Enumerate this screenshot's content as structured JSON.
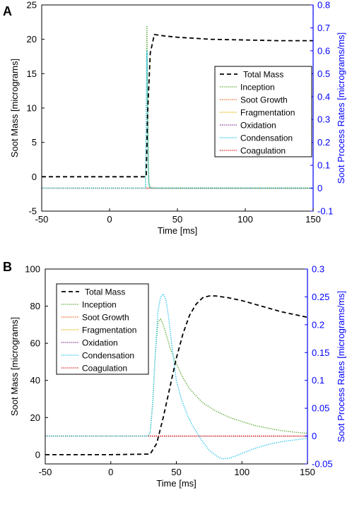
{
  "figure": {
    "panels": [
      {
        "label": "A"
      },
      {
        "label": "B"
      }
    ]
  },
  "colors": {
    "total_mass": "#000000",
    "inception": "#5aa832",
    "soot_growth": "#e8631a",
    "fragmentation": "#e6b400",
    "oxidation": "#7b2d8e",
    "condensation": "#25c2e8",
    "coagulation": "#d8141c",
    "right_axis": "#0000ff"
  },
  "chart_data": [
    {
      "panel": "A",
      "type": "line",
      "xlabel": "Time [ms]",
      "ylabel": "Soot Mass [micrograms]",
      "y2label": "Soot Process Rates [micrograms/ms]",
      "xlim": [
        -50,
        150
      ],
      "ylim": [
        -5,
        25
      ],
      "y2lim": [
        -0.1,
        0.8
      ],
      "xticks": [
        -50,
        0,
        50,
        100,
        150
      ],
      "yticks": [
        -5,
        0,
        5,
        10,
        15,
        20,
        25
      ],
      "y2ticks": [
        -0.1,
        0,
        0.1,
        0.2,
        0.3,
        0.4,
        0.5,
        0.6,
        0.7,
        0.8
      ],
      "grid": false,
      "legend_position": "center-right",
      "series": [
        {
          "name": "Total Mass",
          "axis": "left",
          "style": "dashed",
          "color_key": "total_mass",
          "x": [
            -50,
            27,
            28,
            30,
            33,
            40,
            50,
            75,
            100,
            125,
            150
          ],
          "y": [
            0,
            0,
            9,
            18,
            20.7,
            20.5,
            20.3,
            20.0,
            19.9,
            19.8,
            19.8
          ]
        },
        {
          "name": "Inception",
          "axis": "right",
          "style": "dotted",
          "color_key": "inception",
          "x": [
            -50,
            26.5,
            27,
            27.5,
            28,
            28.5,
            29,
            30,
            40,
            150
          ],
          "y": [
            0,
            0,
            0.3,
            0.71,
            0.4,
            0.12,
            0.02,
            0.002,
            0,
            0
          ]
        },
        {
          "name": "Soot Growth",
          "axis": "right",
          "style": "dotted",
          "color_key": "soot_growth",
          "x": [
            -50,
            150
          ],
          "y": [
            0,
            0
          ]
        },
        {
          "name": "Fragmentation",
          "axis": "right",
          "style": "dotted",
          "color_key": "fragmentation",
          "x": [
            -50,
            150
          ],
          "y": [
            0,
            0
          ]
        },
        {
          "name": "Oxidation",
          "axis": "right",
          "style": "dotted",
          "color_key": "oxidation",
          "x": [
            -50,
            150
          ],
          "y": [
            0,
            0
          ]
        },
        {
          "name": "Condensation",
          "axis": "right",
          "style": "dotted",
          "color_key": "condensation",
          "x": [
            -50,
            26.5,
            27,
            27.5,
            28,
            28.5,
            29,
            30,
            40,
            150
          ],
          "y": [
            0,
            0,
            0.28,
            0.6,
            0.38,
            0.1,
            0.015,
            0.001,
            0,
            0
          ]
        },
        {
          "name": "Coagulation",
          "axis": "right",
          "style": "dotted",
          "color_key": "coagulation",
          "x": [
            -50,
            150
          ],
          "y": [
            0,
            0
          ]
        }
      ]
    },
    {
      "panel": "B",
      "type": "line",
      "xlabel": "Time [ms]",
      "ylabel": "Soot Mass [micrograms]",
      "y2label": "Soot Process Rates [micrograms/ms]",
      "xlim": [
        -50,
        150
      ],
      "ylim": [
        -5,
        100
      ],
      "y2lim": [
        -0.05,
        0.3
      ],
      "xticks": [
        -50,
        0,
        50,
        100,
        150
      ],
      "yticks": [
        0,
        20,
        40,
        60,
        80,
        100
      ],
      "y2ticks": [
        -0.05,
        0,
        0.05,
        0.1,
        0.15,
        0.2,
        0.25,
        0.3
      ],
      "grid": false,
      "legend_position": "upper-left",
      "series": [
        {
          "name": "Total Mass",
          "axis": "left",
          "style": "dashed",
          "color_key": "total_mass",
          "x": [
            -50,
            0,
            30,
            35,
            40,
            45,
            50,
            55,
            60,
            65,
            70,
            75,
            80,
            90,
            100,
            110,
            120,
            130,
            140,
            150
          ],
          "y": [
            0,
            0,
            0.3,
            6,
            20,
            36,
            52,
            65,
            75,
            81,
            84.5,
            85.5,
            85.5,
            84.5,
            83,
            81,
            79,
            77,
            75.5,
            74
          ]
        },
        {
          "name": "Inception",
          "axis": "right",
          "style": "dotted",
          "color_key": "inception",
          "x": [
            -50,
            28,
            30,
            32,
            34,
            36,
            38,
            40,
            42,
            45,
            50,
            55,
            60,
            70,
            80,
            90,
            100,
            110,
            120,
            130,
            140,
            150
          ],
          "y": [
            0,
            0,
            0.005,
            0.06,
            0.15,
            0.205,
            0.21,
            0.2,
            0.185,
            0.16,
            0.13,
            0.105,
            0.085,
            0.06,
            0.045,
            0.034,
            0.026,
            0.019,
            0.014,
            0.01,
            0.007,
            0.005
          ]
        },
        {
          "name": "Soot Growth",
          "axis": "right",
          "style": "dotted",
          "color_key": "soot_growth",
          "x": [
            -50,
            150
          ],
          "y": [
            0,
            0
          ]
        },
        {
          "name": "Fragmentation",
          "axis": "right",
          "style": "dotted",
          "color_key": "fragmentation",
          "x": [
            -50,
            150
          ],
          "y": [
            0,
            0
          ]
        },
        {
          "name": "Oxidation",
          "axis": "right",
          "style": "dotted",
          "color_key": "oxidation",
          "x": [
            -50,
            150
          ],
          "y": [
            0,
            0
          ]
        },
        {
          "name": "Condensation",
          "axis": "right",
          "style": "dotted",
          "color_key": "condensation",
          "x": [
            -50,
            28,
            30,
            32,
            34,
            36,
            38,
            40,
            42,
            44,
            46,
            48,
            50,
            54,
            58,
            62,
            66,
            70,
            75,
            80,
            85,
            90,
            95,
            100,
            110,
            120,
            130,
            140,
            150
          ],
          "y": [
            0,
            0,
            0.005,
            0.06,
            0.15,
            0.225,
            0.25,
            0.255,
            0.245,
            0.215,
            0.175,
            0.135,
            0.1,
            0.065,
            0.04,
            0.02,
            0.005,
            -0.01,
            -0.025,
            -0.035,
            -0.041,
            -0.04,
            -0.036,
            -0.031,
            -0.022,
            -0.015,
            -0.01,
            -0.007,
            -0.004
          ]
        },
        {
          "name": "Coagulation",
          "axis": "right",
          "style": "dotted",
          "color_key": "coagulation",
          "x": [
            -50,
            150
          ],
          "y": [
            0,
            0
          ]
        }
      ]
    }
  ]
}
